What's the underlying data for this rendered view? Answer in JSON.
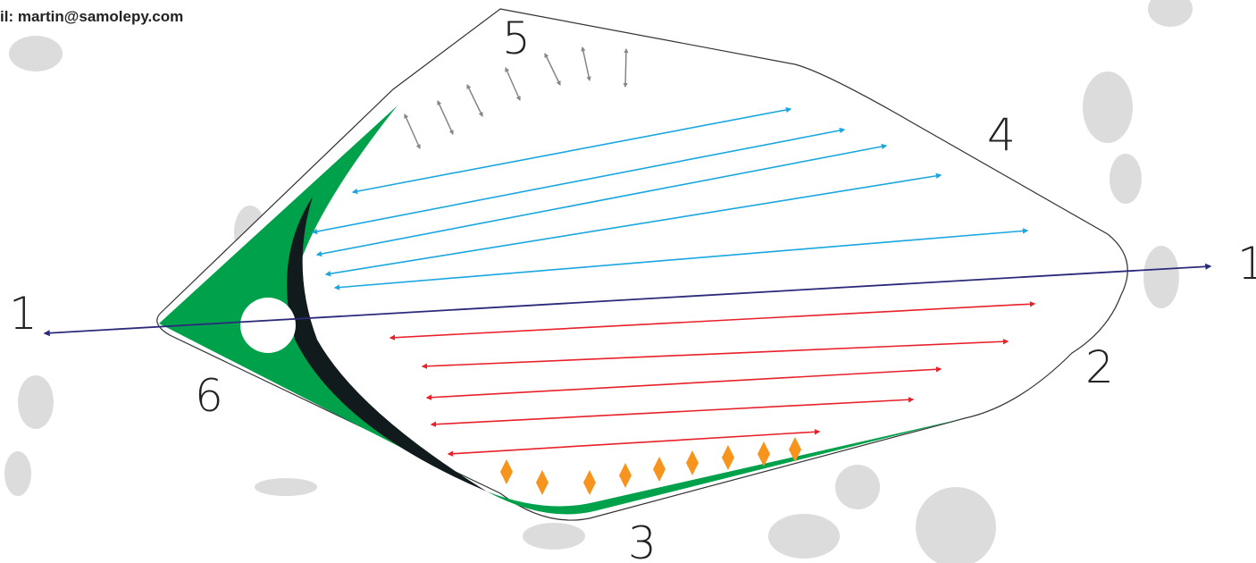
{
  "header": {
    "email": "il: martin@samolepy.com"
  },
  "labels": [
    "1",
    "1",
    "2",
    "3",
    "4",
    "5",
    "6"
  ]
}
